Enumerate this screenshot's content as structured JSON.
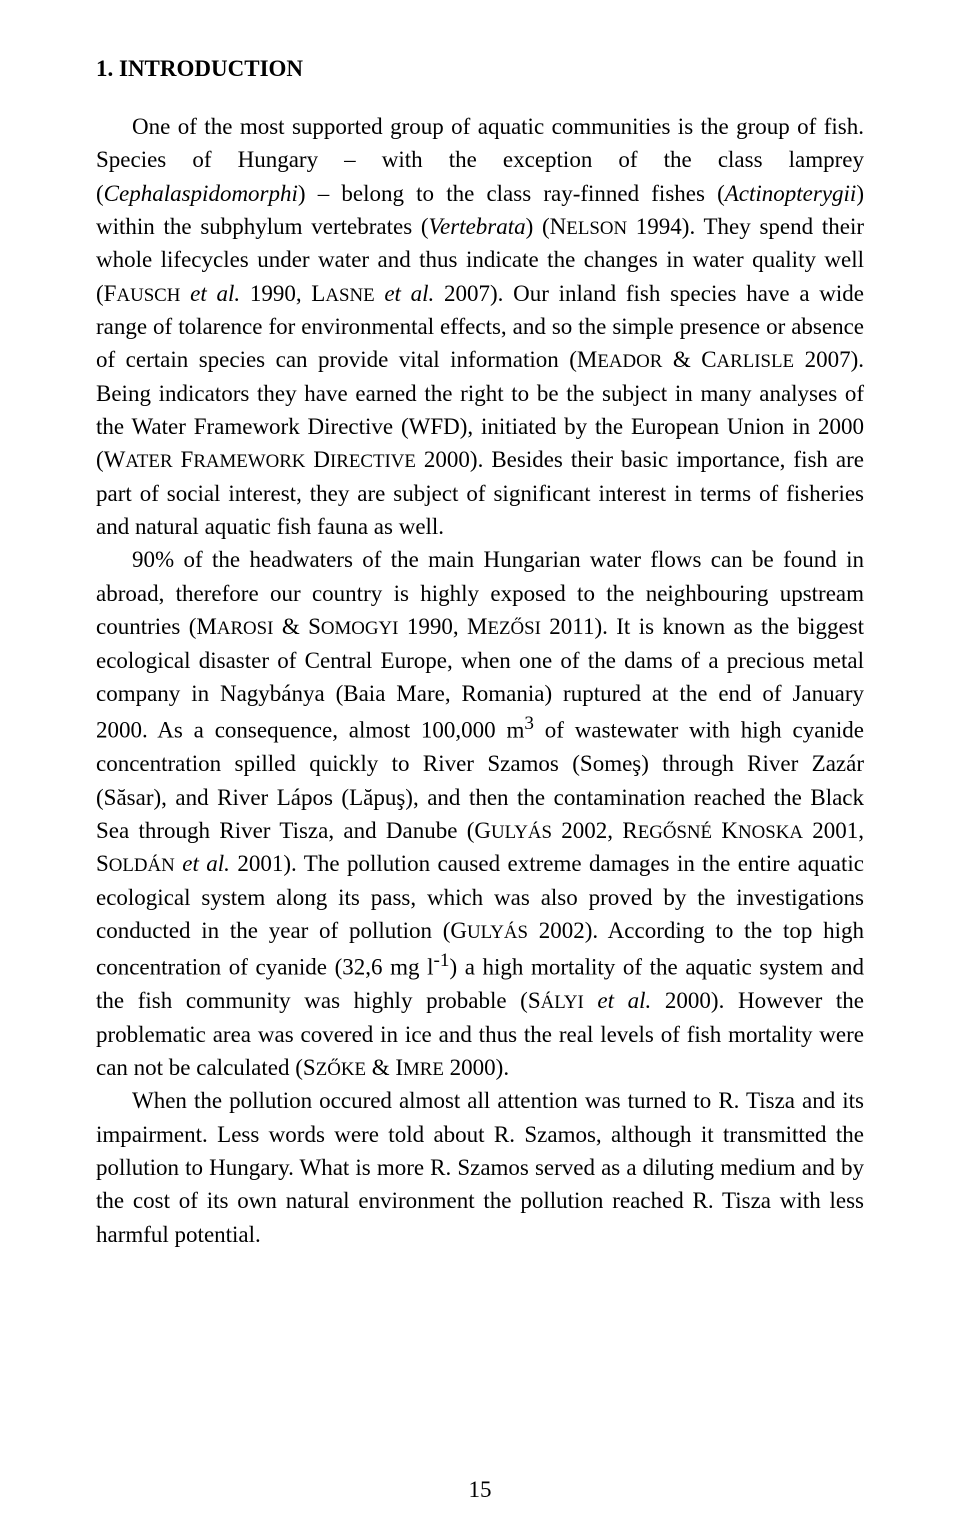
{
  "heading": "1. INTRODUCTION",
  "p1_a": "One of the most supported group of aquatic communities is the group of fish. Species of Hungary – with the exception of the class lamprey (",
  "p1_b": "Cephalaspidomorphi",
  "p1_c": ") – belong to the class ray-finned fishes (",
  "p1_d": "Actinopterygii",
  "p1_e": ") within the subphylum vertebrates (",
  "p1_f": "Vertebrata",
  "p1_g": ") (N",
  "p1_h": "ELSON",
  "p1_i": " 1994). They spend their whole lifecycles under water and thus indicate the changes in water quality well (F",
  "p1_j": "AUSCH",
  "p1_k": " ",
  "p1_l": "et al.",
  "p1_m": " 1990, L",
  "p1_n": "ASNE",
  "p1_o": " ",
  "p1_p": "et al.",
  "p1_q": " 2007). Our inland fish species have a wide range of tolarence for environmental effects, and so the simple presence or absence of certain species can provide vital information (M",
  "p1_r": "EADOR",
  "p1_s": " & C",
  "p1_t": "ARLISLE",
  "p1_u": " 2007). Being indicators they have earned the right to be the subject in many analyses of the Water Framework Directive (WFD), initiated by the European Union in 2000 (W",
  "p1_v": "ATER",
  "p1_w": " F",
  "p1_x": "RAMEWORK",
  "p1_y": " D",
  "p1_z": "IRECTIVE",
  "p1_aa": " 2000). Besides their basic importance, fish are part of social interest, they are subject of significant interest in terms of fisheries and natural aquatic fish fauna as well.",
  "p2_a": "90% of the headwaters of the main Hungarian water flows can be found in abroad, therefore our country is highly exposed to the neighbouring upstream countries (M",
  "p2_b": "AROSI",
  "p2_c": " & S",
  "p2_d": "OMOGYI",
  "p2_e": " 1990, M",
  "p2_f": "EZŐSI",
  "p2_g": " 2011). It is known as the biggest ecological disaster of Central Europe, when one of the dams of a precious metal company in Nagybánya (Baia Mare, Romania) ruptured at the end of January 2000. As a consequence, almost 100,000 m",
  "p2_sup1": "3",
  "p2_h": " of wastewater with high cyanide concentration spilled quickly to River Szamos (Someş) through River Zazár (Săsar), and River Lápos (Lăpuş), and then the contamination reached the Black Sea through River Tisza, and Danube (G",
  "p2_i": "ULYÁS",
  "p2_j": " 2002, R",
  "p2_k": "EGŐSNÉ",
  "p2_l": " K",
  "p2_m": "NOSKA",
  "p2_n": " 2001, S",
  "p2_o": "OLDÁN",
  "p2_p": " ",
  "p2_q": "et al.",
  "p2_r": " 2001). The pollution caused extreme damages in the entire aquatic ecological system along its pass, which was also proved by the investigations conducted in the year of pollution (G",
  "p2_s": "ULYÁS",
  "p2_t": " 2002). According to the top high concentration of cyanide (32,6 mg l",
  "p2_sup2": "-1",
  "p2_u": ") a high mortality of the aquatic system and the fish community was highly probable (S",
  "p2_v": "ÁLYI",
  "p2_w": " ",
  "p2_x": "et al.",
  "p2_y": " 2000). However the problematic area was covered in ice and thus the real levels of fish mortality were can not be calculated (S",
  "p2_z": "ZŐKE",
  "p2_aa": " & I",
  "p2_ab": "MRE",
  "p2_ac": " 2000).",
  "p3_a": "When the pollution occured almost all attention was turned to R. Tisza and its impairment. Less words were told about R. Szamos, although it transmitted the pollution to Hungary. What is more R. Szamos served as a diluting medium and by the cost of its own natural environment the pollution reached R. Tisza with less harmful potential.",
  "page_number": "15"
}
